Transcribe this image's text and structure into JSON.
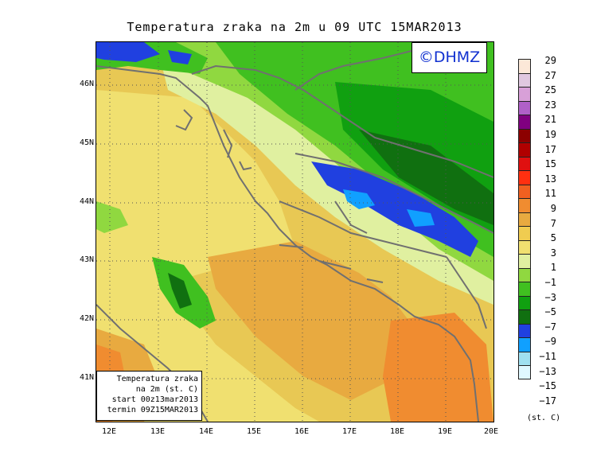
{
  "title": "Temperatura zraka na 2m u 09 UTC 15MAR2013",
  "logo": "©DHMZ",
  "info": {
    "line1": "Temperatura zraka",
    "line2": "na 2m (st. C)",
    "line3": "start 00z13mar2013",
    "line4": "termin 09Z15MAR2013"
  },
  "lat_labels": [
    "46N",
    "45N",
    "44N",
    "43N",
    "42N",
    "41N"
  ],
  "lon_labels": [
    "12E",
    "13E",
    "14E",
    "15E",
    "16E",
    "17E",
    "18E",
    "19E",
    "20E"
  ],
  "legend": {
    "values": [
      "29",
      "27",
      "25",
      "23",
      "21",
      "19",
      "17",
      "15",
      "13",
      "11",
      "9",
      "7",
      "5",
      "3",
      "1",
      "−1",
      "−3",
      "−5",
      "−7",
      "−9",
      "−11",
      "−13",
      "−15",
      "−17"
    ],
    "colors": [
      "#fce8d8",
      "#e0c8e0",
      "#d8a0d8",
      "#b060c8",
      "#800080",
      "#8c0000",
      "#b00000",
      "#e01010",
      "#ff3010",
      "#f06020",
      "#f08c30",
      "#e8aa40",
      "#f0cc50",
      "#f0e070",
      "#e0f0a0",
      "#90d840",
      "#40c020",
      "#10a010",
      "#107010",
      "#2040e0",
      "#10a0ff",
      "#a0e0f0",
      "#e0f8ff"
    ],
    "unit": "(st. C)"
  }
}
